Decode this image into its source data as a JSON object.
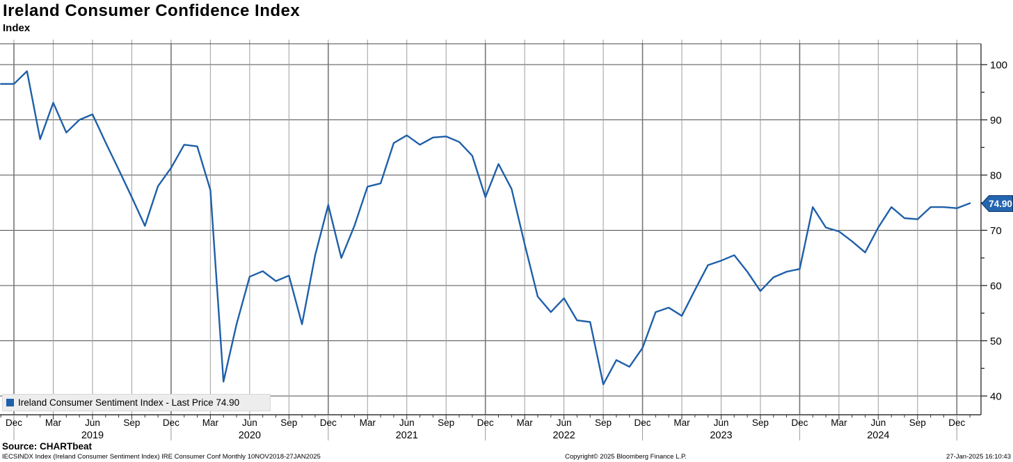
{
  "header": {
    "title": "Ireland Consumer Confidence Index",
    "subtitle": "Index"
  },
  "legend": {
    "label": "Ireland Consumer Sentiment Index - Last Price 74.90",
    "swatch_color": "#1e5fa9"
  },
  "last_price_tag": {
    "value": "74.90",
    "bg_color": "#2565b0",
    "border_color": "#0a2f63",
    "text_color": "#ffffff"
  },
  "footer": {
    "source": "Source: CHARTbeat",
    "fine_print_left": "IECSINDX Index (Ireland Consumer Sentiment Index) IRE Consumer Conf  Monthly 10NOV2018-27JAN2025",
    "fine_print_center": "Copyright© 2025 Bloomberg Finance L.P.",
    "fine_print_right": "27-Jan-2025 16:10:43"
  },
  "chart_data": {
    "type": "line",
    "title": "Ireland Consumer Confidence Index",
    "ylabel": "Index",
    "series_name": "Ireland Consumer Sentiment Index",
    "last_price": 74.9,
    "line_color": "#1e5fa9",
    "grid": true,
    "legend_position": "bottom-left",
    "y_axis_side": "right",
    "y_ticks": [
      40,
      50,
      60,
      70,
      80,
      90,
      100
    ],
    "y_minor_step": 5,
    "ylim": [
      36.6,
      103.8
    ],
    "x_quarter_tick_names": [
      "Dec",
      "Mar",
      "Jun",
      "Sep"
    ],
    "year_labels": [
      "2019",
      "2020",
      "2021",
      "2022",
      "2023",
      "2024"
    ],
    "x": [
      "Nov 2018",
      "Dec 2018",
      "Jan 2019",
      "Feb 2019",
      "Mar 2019",
      "Apr 2019",
      "May 2019",
      "Jun 2019",
      "Jul 2019",
      "Aug 2019",
      "Sep 2019",
      "Oct 2019",
      "Nov 2019",
      "Dec 2019",
      "Jan 2020",
      "Feb 2020",
      "Mar 2020",
      "Apr 2020",
      "May 2020",
      "Jun 2020",
      "Jul 2020",
      "Aug 2020",
      "Sep 2020",
      "Oct 2020",
      "Nov 2020",
      "Dec 2020",
      "Jan 2021",
      "Feb 2021",
      "Mar 2021",
      "Apr 2021",
      "May 2021",
      "Jun 2021",
      "Jul 2021",
      "Aug 2021",
      "Sep 2021",
      "Oct 2021",
      "Nov 2021",
      "Dec 2021",
      "Jan 2022",
      "Feb 2022",
      "Mar 2022",
      "Apr 2022",
      "May 2022",
      "Jun 2022",
      "Jul 2022",
      "Aug 2022",
      "Sep 2022",
      "Oct 2022",
      "Nov 2022",
      "Dec 2022",
      "Jan 2023",
      "Feb 2023",
      "Mar 2023",
      "Apr 2023",
      "May 2023",
      "Jun 2023",
      "Jul 2023",
      "Aug 2023",
      "Sep 2023",
      "Oct 2023",
      "Nov 2023",
      "Dec 2023",
      "Jan 2024",
      "Feb 2024",
      "Mar 2024",
      "Apr 2024",
      "May 2024",
      "Jun 2024",
      "Jul 2024",
      "Aug 2024",
      "Sep 2024",
      "Oct 2024",
      "Nov 2024",
      "Dec 2024",
      "Jan 2025"
    ],
    "values": [
      96.5,
      96.5,
      98.8,
      86.5,
      93.1,
      87.7,
      90.0,
      91.0,
      85.9,
      81.0,
      76.0,
      70.8,
      78.0,
      81.3,
      85.5,
      85.2,
      77.3,
      42.6,
      53.0,
      61.6,
      62.6,
      60.8,
      61.8,
      53.0,
      65.5,
      74.6,
      65.0,
      70.8,
      77.9,
      78.5,
      85.8,
      87.2,
      85.5,
      86.8,
      87.0,
      86.0,
      83.5,
      76.0,
      82.0,
      77.5,
      67.5,
      58.0,
      55.2,
      57.7,
      53.7,
      53.4,
      42.1,
      46.5,
      45.3,
      48.7,
      55.2,
      56.0,
      54.5,
      59.2,
      63.7,
      64.5,
      65.5,
      62.5,
      59.0,
      61.5,
      62.5,
      63.0,
      74.2,
      70.5,
      69.8,
      68.0,
      66.0,
      70.5,
      74.2,
      72.2,
      72.0,
      74.2,
      74.2,
      74.0,
      74.9
    ]
  }
}
